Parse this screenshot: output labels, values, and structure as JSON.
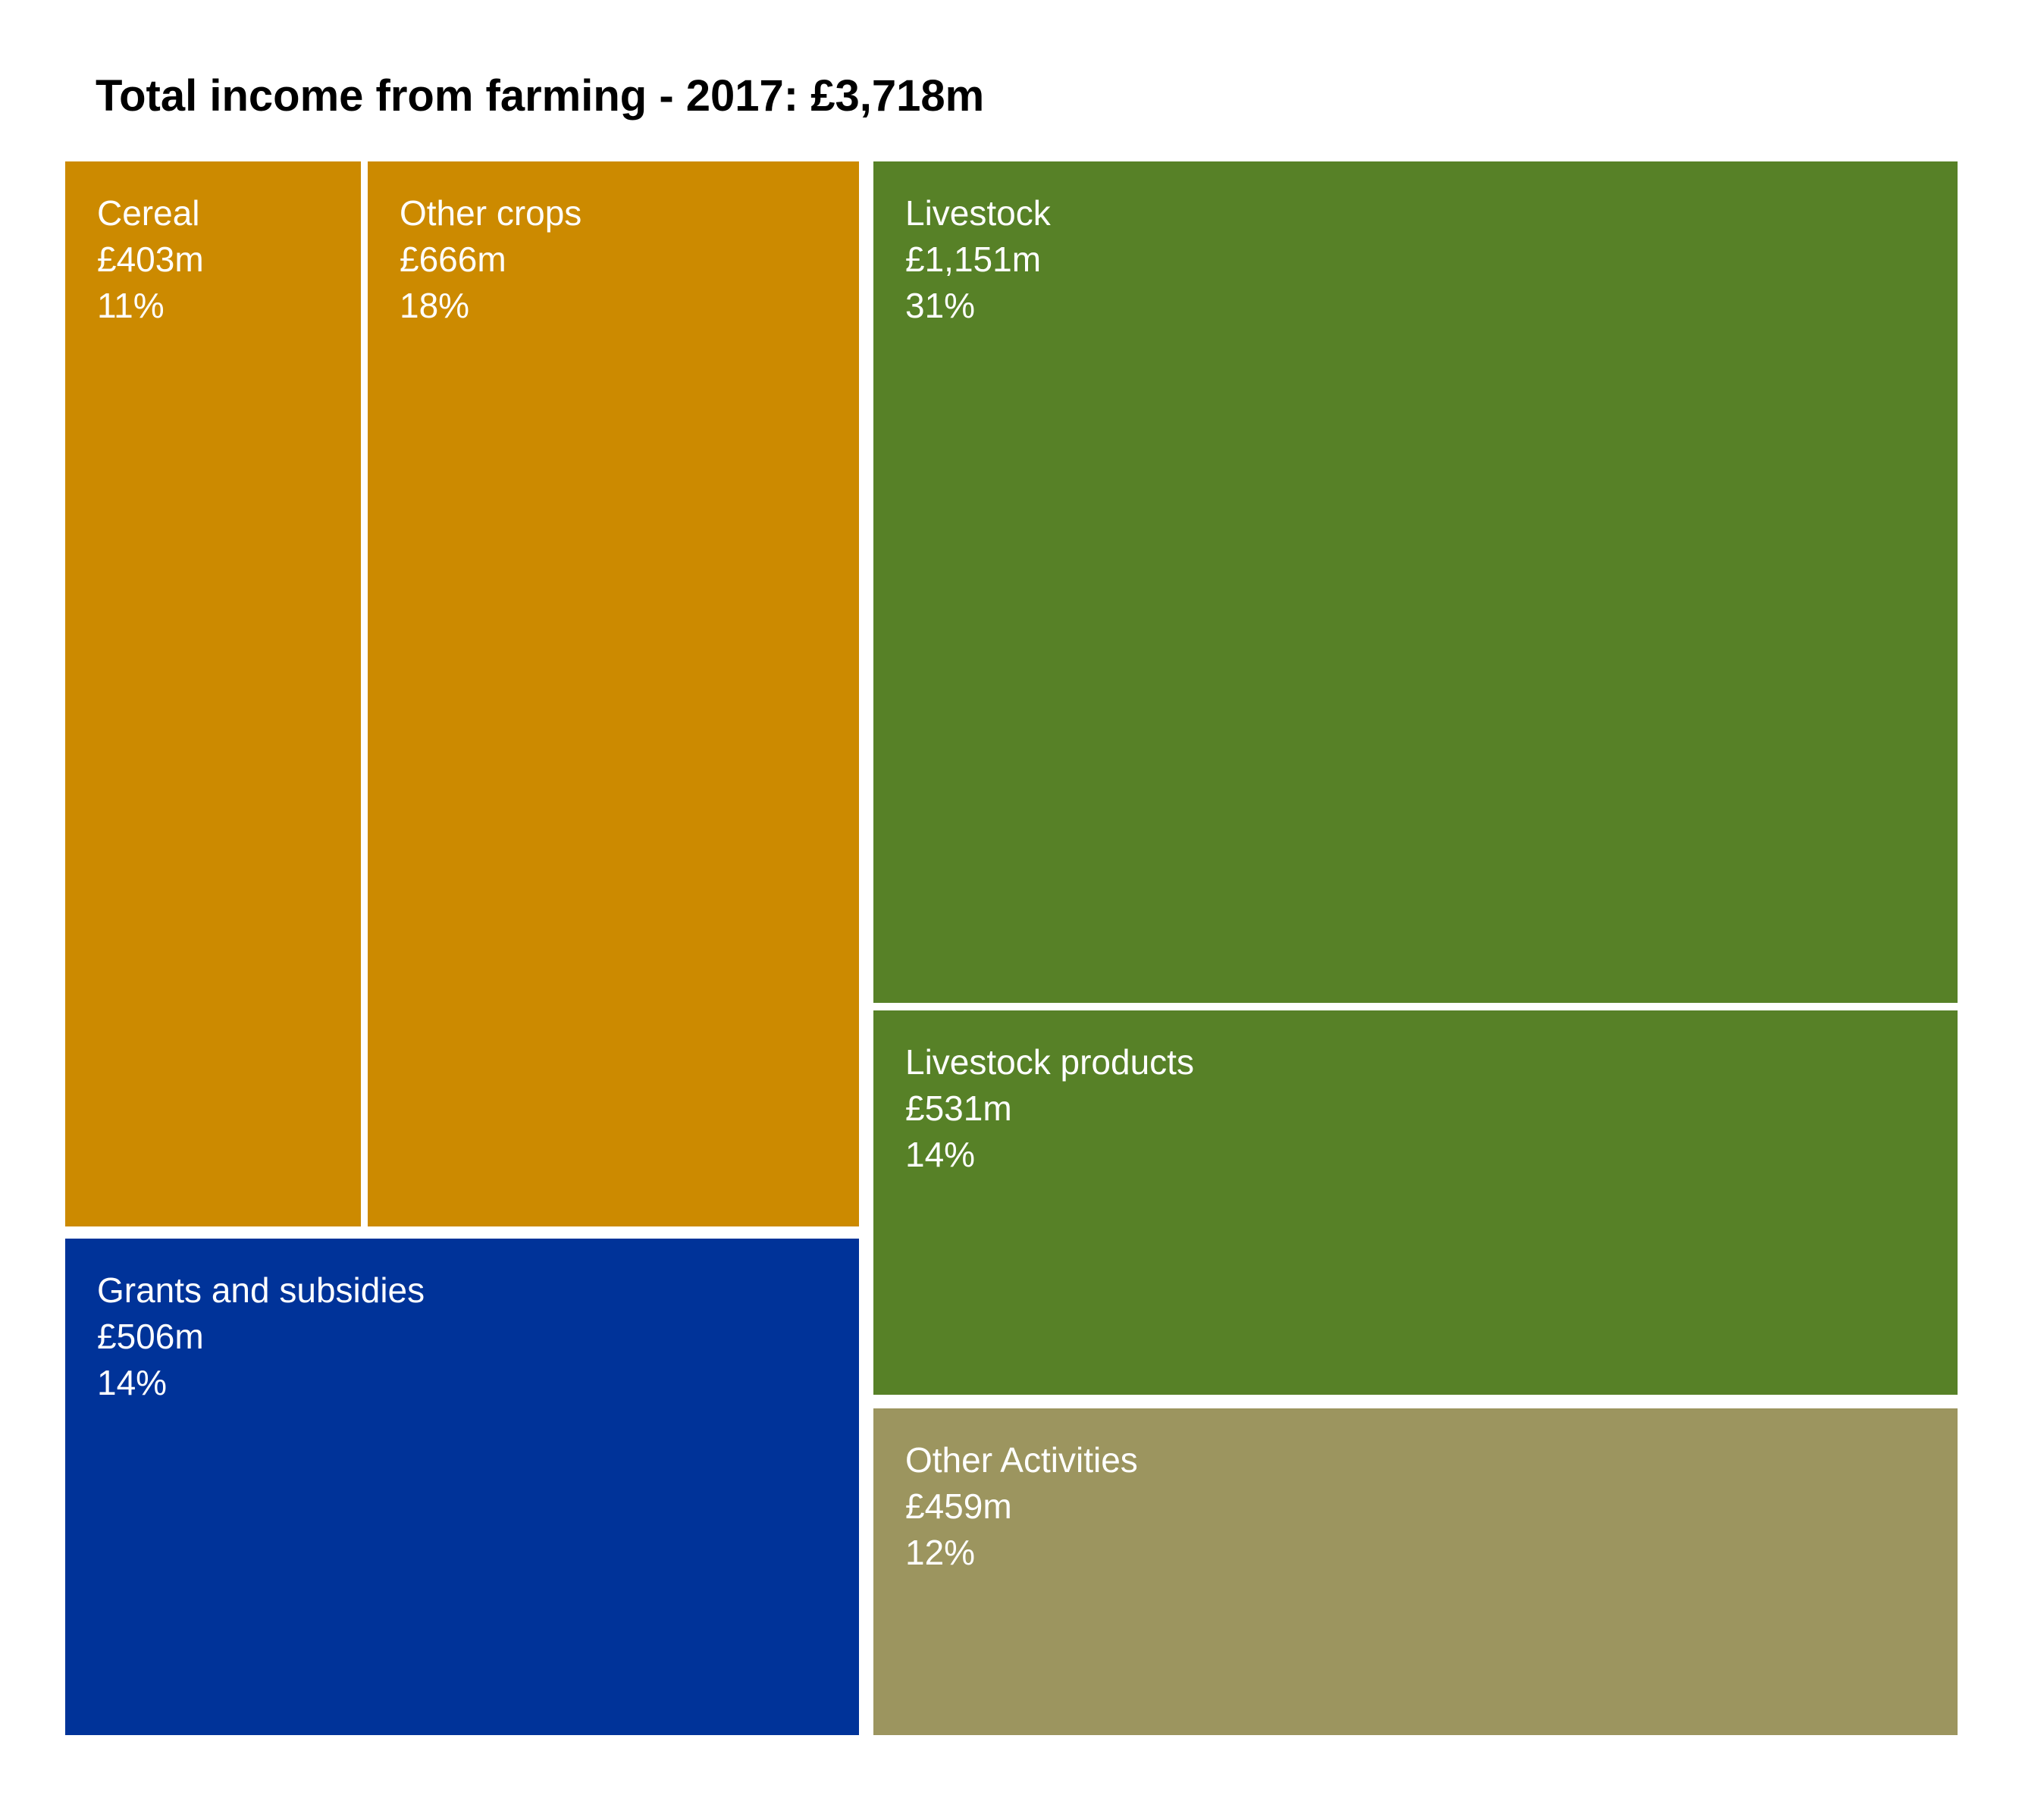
{
  "chart_data": {
    "type": "treemap",
    "title": "Total income from farming - 2017: £3,718m",
    "unit": "£m",
    "items": [
      {
        "name": "Cereal",
        "value": 403,
        "value_label": "£403m",
        "percent_label": "11%",
        "color": "#CC8A00"
      },
      {
        "name": "Other crops",
        "value": 666,
        "value_label": "£666m",
        "percent_label": "18%",
        "color": "#CC8A00"
      },
      {
        "name": "Grants and subsidies",
        "value": 506,
        "value_label": "£506m",
        "percent_label": "14%",
        "color": "#003399"
      },
      {
        "name": "Livestock",
        "value": 1151,
        "value_label": "£1,151m",
        "percent_label": "31%",
        "color": "#578127"
      },
      {
        "name": "Livestock products",
        "value": 531,
        "value_label": "£531m",
        "percent_label": "14%",
        "color": "#578127"
      },
      {
        "name": "Other Activities",
        "value": 459,
        "value_label": "£459m",
        "percent_label": "12%",
        "color": "#9C955F"
      }
    ]
  }
}
